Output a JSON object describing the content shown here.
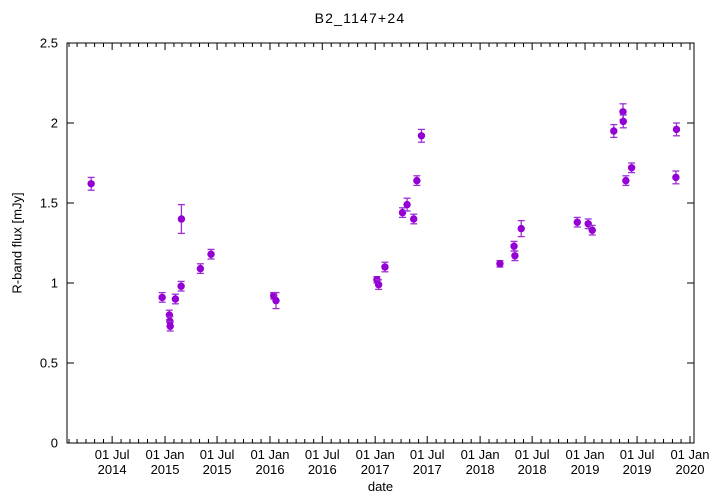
{
  "chart_data": {
    "type": "scatter",
    "title": "B2_1147+24",
    "xlabel": "date",
    "ylabel": "R-band flux [mJy]",
    "legend": "none",
    "grid": false,
    "background": "#ffffff",
    "point_color": "#9400d3",
    "errorbar_color": "#9e2fd6",
    "marker": "filled-circle-with-vertical-error-bars",
    "x_range": [
      "2014-01-25",
      "2020-01-15"
    ],
    "y_range": [
      0,
      2.5
    ],
    "y_ticks": [
      {
        "value": 0,
        "label": "0"
      },
      {
        "value": 0.5,
        "label": "0.5"
      },
      {
        "value": 1,
        "label": "1"
      },
      {
        "value": 1.5,
        "label": "1.5"
      },
      {
        "value": 2,
        "label": "2"
      },
      {
        "value": 2.5,
        "label": "2.5"
      }
    ],
    "x_major_ticks": [
      {
        "date": "2014-07-01",
        "label": [
          "01 Jul",
          "2014"
        ]
      },
      {
        "date": "2015-01-01",
        "label": [
          "01 Jan",
          "2015"
        ]
      },
      {
        "date": "2015-07-01",
        "label": [
          "01 Jul",
          "2015"
        ]
      },
      {
        "date": "2016-01-01",
        "label": [
          "01 Jan",
          "2016"
        ]
      },
      {
        "date": "2016-07-01",
        "label": [
          "01 Jul",
          "2016"
        ]
      },
      {
        "date": "2017-01-01",
        "label": [
          "01 Jan",
          "2017"
        ]
      },
      {
        "date": "2017-07-01",
        "label": [
          "01 Jul",
          "2017"
        ]
      },
      {
        "date": "2018-01-01",
        "label": [
          "01 Jan",
          "2018"
        ]
      },
      {
        "date": "2018-07-01",
        "label": [
          "01 Jul",
          "2018"
        ]
      },
      {
        "date": "2019-01-01",
        "label": [
          "01 Jan",
          "2019"
        ]
      },
      {
        "date": "2019-07-01",
        "label": [
          "01 Jul",
          "2019"
        ]
      },
      {
        "date": "2020-01-01",
        "label": [
          "01 Jan",
          "2020"
        ]
      }
    ],
    "x_minor_tick_interval": "1 month",
    "points_format": [
      "date",
      "flux_mJy",
      "err_mJy"
    ],
    "series": [
      {
        "name": "R-band flux",
        "points": [
          [
            "2014-04-19",
            1.62,
            0.04
          ],
          [
            "2014-12-22",
            0.91,
            0.03
          ],
          [
            "2015-01-16",
            0.8,
            0.03
          ],
          [
            "2015-01-18",
            0.76,
            0.03
          ],
          [
            "2015-01-19",
            0.73,
            0.03
          ],
          [
            "2015-02-06",
            0.9,
            0.03
          ],
          [
            "2015-02-26",
            0.98,
            0.03
          ],
          [
            "2015-02-27",
            1.4,
            0.09
          ],
          [
            "2015-05-04",
            1.09,
            0.03
          ],
          [
            "2015-06-10",
            1.18,
            0.03
          ],
          [
            "2016-01-14",
            0.92,
            0.02
          ],
          [
            "2016-01-22",
            0.89,
            0.05
          ],
          [
            "2017-01-07",
            1.02,
            0.02
          ],
          [
            "2017-01-13",
            0.99,
            0.03
          ],
          [
            "2017-02-04",
            1.1,
            0.03
          ],
          [
            "2017-04-06",
            1.44,
            0.03
          ],
          [
            "2017-04-22",
            1.49,
            0.04
          ],
          [
            "2017-05-15",
            1.4,
            0.03
          ],
          [
            "2017-05-26",
            1.64,
            0.03
          ],
          [
            "2017-06-11",
            1.92,
            0.04
          ],
          [
            "2018-03-11",
            1.12,
            0.02
          ],
          [
            "2018-04-29",
            1.23,
            0.03
          ],
          [
            "2018-05-02",
            1.17,
            0.03
          ],
          [
            "2018-05-24",
            1.34,
            0.05
          ],
          [
            "2018-12-05",
            1.38,
            0.03
          ],
          [
            "2019-01-12",
            1.37,
            0.03
          ],
          [
            "2019-01-26",
            1.33,
            0.03
          ],
          [
            "2019-04-11",
            1.95,
            0.04
          ],
          [
            "2019-05-13",
            2.07,
            0.05
          ],
          [
            "2019-05-14",
            2.01,
            0.04
          ],
          [
            "2019-05-23",
            1.64,
            0.03
          ],
          [
            "2019-06-12",
            1.72,
            0.03
          ],
          [
            "2019-11-13",
            1.66,
            0.04
          ],
          [
            "2019-11-15",
            1.96,
            0.04
          ]
        ]
      }
    ]
  }
}
